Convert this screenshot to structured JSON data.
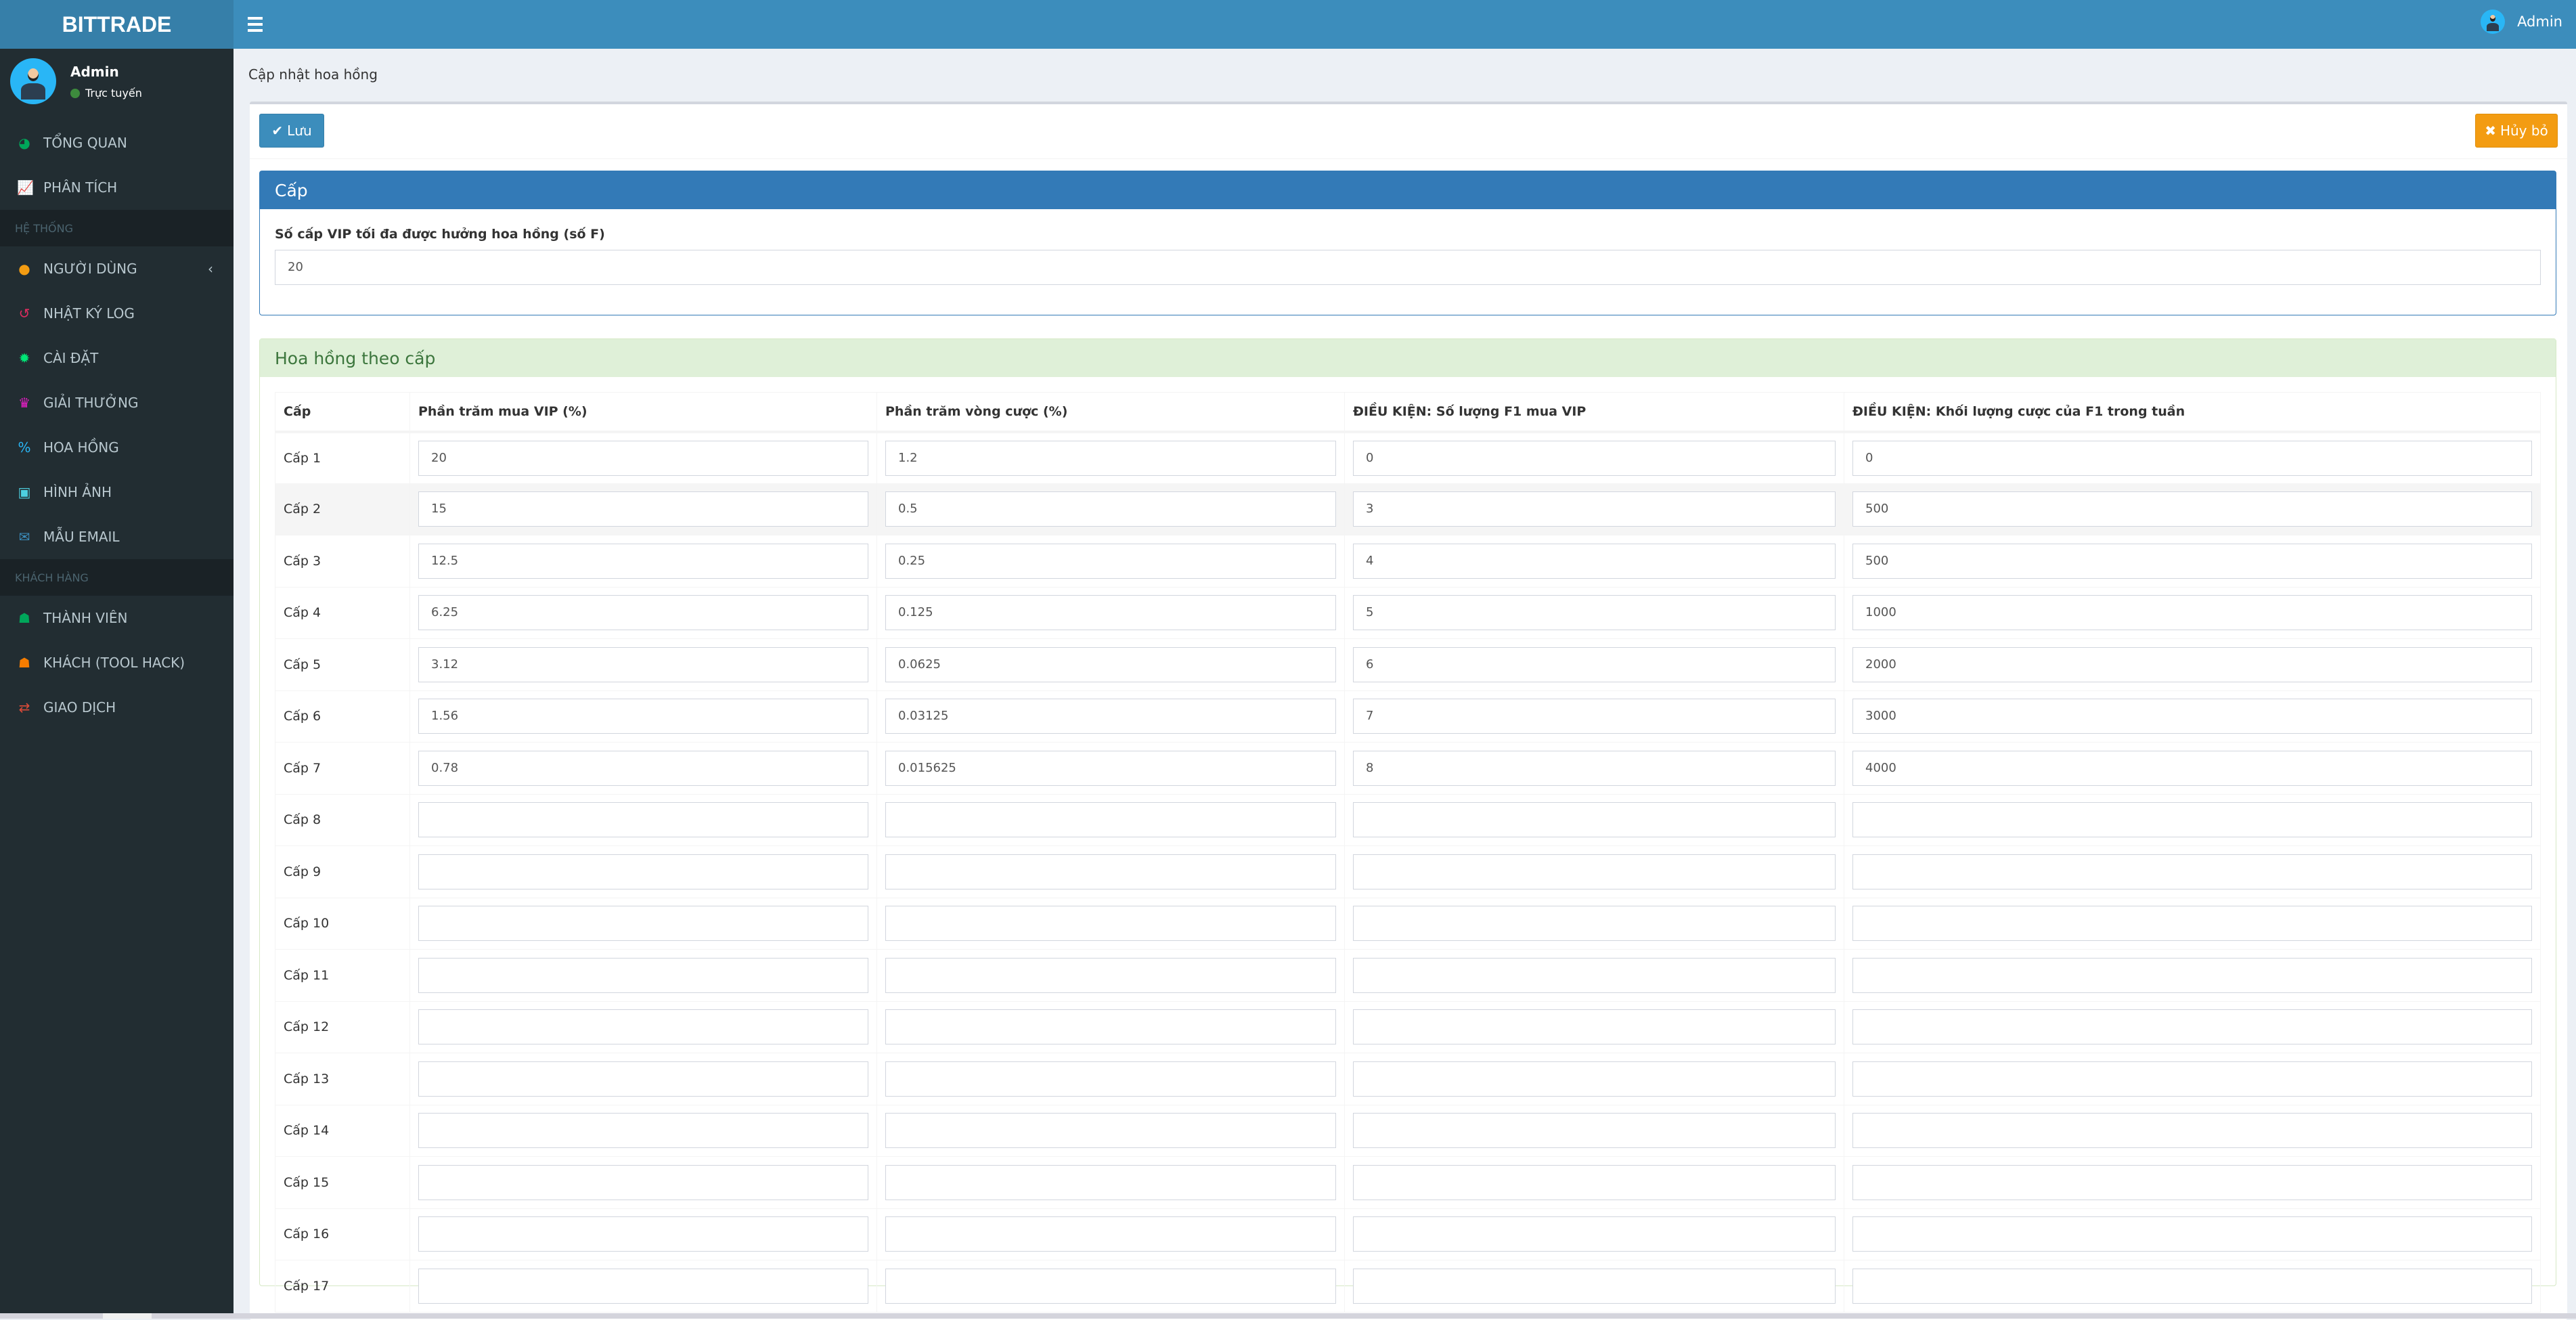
{
  "header": {
    "logo": "BITTRADE",
    "user": "Admin"
  },
  "sidebar": {
    "user": {
      "name": "Admin",
      "status": "Trực tuyến"
    },
    "items": [
      {
        "label": "TỔNG QUAN",
        "icon": "dashboard-icon",
        "color": "#00a65a"
      },
      {
        "label": "PHÂN TÍCH",
        "icon": "line-chart-icon",
        "color": "#3c8dbc"
      },
      {
        "header": "HỆ THỐNG"
      },
      {
        "label": "NGƯỜI DÙNG",
        "icon": "user-icon",
        "color": "#f39c12",
        "chevron": true
      },
      {
        "label": "NHẬT KÝ LOG",
        "icon": "history-icon",
        "color": "#dd2c5f"
      },
      {
        "label": "CÀI ĐẶT",
        "icon": "gear-icon",
        "color": "#00e676"
      },
      {
        "label": "GIẢI THƯỞNG",
        "icon": "trophy-icon",
        "color": "#e91ec8"
      },
      {
        "label": "HOA HỒNG",
        "icon": "percent-icon",
        "color": "#29b6f6"
      },
      {
        "label": "HÌNH ẢNH",
        "icon": "image-icon",
        "color": "#4dd0e1"
      },
      {
        "label": "MẪU EMAIL",
        "icon": "envelope-icon",
        "color": "#3c8dbc"
      },
      {
        "header": "KHÁCH HÀNG"
      },
      {
        "label": "THÀNH VIÊN",
        "icon": "users-icon",
        "color": "#00a65a"
      },
      {
        "label": "KHÁCH (TOOL HACK)",
        "icon": "user-secret-icon",
        "color": "#f57c00"
      },
      {
        "label": "GIAO DỊCH",
        "icon": "exchange-icon",
        "color": "#dd4b39"
      }
    ]
  },
  "breadcrumb": "Cập nhật hoa hồng",
  "toolbar": {
    "save": "Lưu",
    "cancel": "Hủy bỏ"
  },
  "panel_cap": {
    "title": "Cấp",
    "label": "Số cấp VIP tối đa được hưởng hoa hồng (số F)",
    "value": "20"
  },
  "panel_hh": {
    "title": "Hoa hồng theo cấp",
    "columns": [
      "Cấp",
      "Phần trăm mua VIP (%)",
      "Phần trăm vòng cược (%)",
      "ĐIỀU KIỆN: Số lượng F1 mua VIP",
      "ĐIỀU KIỆN: Khối lượng cược của F1 trong tuần"
    ],
    "rows": [
      [
        "Cấp 1",
        "20",
        "1.2",
        "0",
        "0"
      ],
      [
        "Cấp 2",
        "15",
        "0.5",
        "3",
        "500"
      ],
      [
        "Cấp 3",
        "12.5",
        "0.25",
        "4",
        "500"
      ],
      [
        "Cấp 4",
        "6.25",
        "0.125",
        "5",
        "1000"
      ],
      [
        "Cấp 5",
        "3.12",
        "0.0625",
        "6",
        "2000"
      ],
      [
        "Cấp 6",
        "1.56",
        "0.03125",
        "7",
        "3000"
      ],
      [
        "Cấp 7",
        "0.78",
        "0.015625",
        "8",
        "4000"
      ],
      [
        "Cấp 8",
        "",
        "",
        "",
        ""
      ],
      [
        "Cấp 9",
        "",
        "",
        "",
        ""
      ],
      [
        "Cấp 10",
        "",
        "",
        "",
        ""
      ],
      [
        "Cấp 11",
        "",
        "",
        "",
        ""
      ],
      [
        "Cấp 12",
        "",
        "",
        "",
        ""
      ],
      [
        "Cấp 13",
        "",
        "",
        "",
        ""
      ],
      [
        "Cấp 14",
        "",
        "",
        "",
        ""
      ],
      [
        "Cấp 15",
        "",
        "",
        "",
        ""
      ],
      [
        "Cấp 16",
        "",
        "",
        "",
        ""
      ],
      [
        "Cấp 17",
        "",
        "",
        "",
        ""
      ]
    ]
  }
}
